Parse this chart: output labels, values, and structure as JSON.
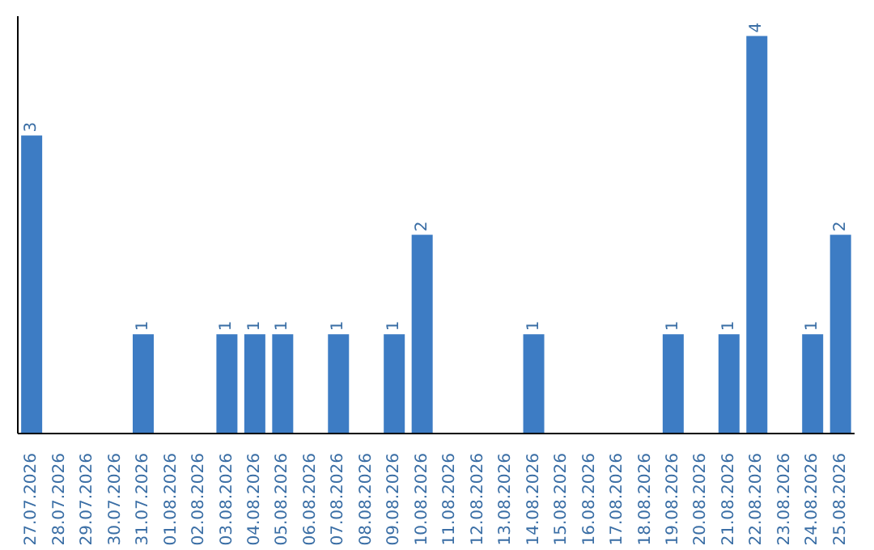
{
  "chart_data": {
    "type": "bar",
    "categories": [
      "27.07.2026",
      "28.07.2026",
      "29.07.2026",
      "30.07.2026",
      "31.07.2026",
      "01.08.2026",
      "02.08.2026",
      "03.08.2026",
      "04.08.2026",
      "05.08.2026",
      "06.08.2026",
      "07.08.2026",
      "08.08.2026",
      "09.08.2026",
      "10.08.2026",
      "11.08.2026",
      "12.08.2026",
      "13.08.2026",
      "14.08.2026",
      "15.08.2026",
      "16.08.2026",
      "17.08.2026",
      "18.08.2026",
      "19.08.2026",
      "20.08.2026",
      "21.08.2026",
      "22.08.2026",
      "23.08.2026",
      "24.08.2026",
      "25.08.2026"
    ],
    "values": [
      3,
      0,
      0,
      0,
      1,
      0,
      0,
      1,
      1,
      1,
      0,
      1,
      0,
      1,
      2,
      0,
      0,
      0,
      1,
      0,
      0,
      0,
      0,
      1,
      0,
      1,
      4,
      0,
      1,
      2
    ],
    "value_labels": [
      "3",
      null,
      null,
      null,
      "1",
      null,
      null,
      "1",
      "1",
      "1",
      null,
      "1",
      null,
      "1",
      "2",
      null,
      null,
      null,
      "1",
      null,
      null,
      null,
      null,
      "1",
      null,
      "1",
      "4",
      null,
      "1",
      "2"
    ],
    "color": "#3d7cc4",
    "tick_labels": "x"
  }
}
